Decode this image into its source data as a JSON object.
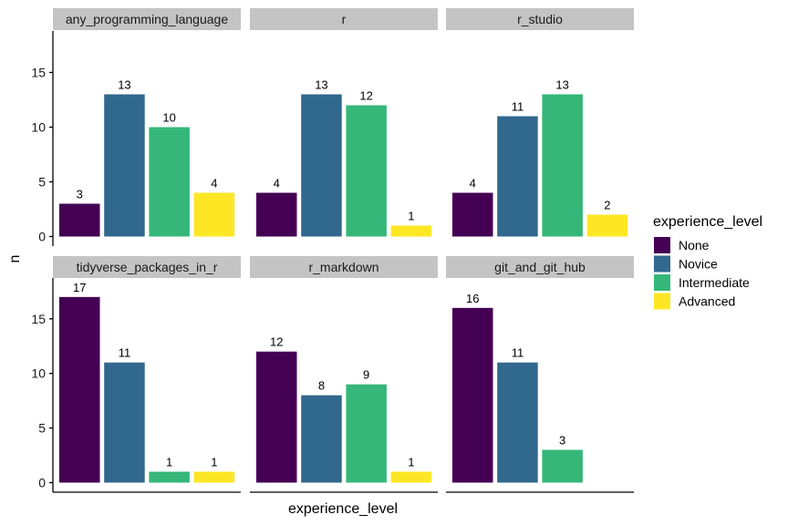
{
  "chart_data": {
    "type": "bar",
    "xlabel": "experience_level",
    "ylabel": "n",
    "ylim": [
      0,
      18
    ],
    "yticks": [
      0,
      5,
      10,
      15
    ],
    "grid": false,
    "legend_title": "experience_level",
    "legend_position": "right",
    "categories": [
      "None",
      "Novice",
      "Intermediate",
      "Advanced"
    ],
    "colors": {
      "None": "#440154",
      "Novice": "#31688E",
      "Intermediate": "#35B779",
      "Advanced": "#FDE725"
    },
    "facets": [
      {
        "title": "any_programming_language",
        "values": [
          3,
          13,
          10,
          4
        ]
      },
      {
        "title": "r",
        "values": [
          4,
          13,
          12,
          1
        ]
      },
      {
        "title": "r_studio",
        "values": [
          4,
          11,
          13,
          2
        ]
      },
      {
        "title": "tidyverse_packages_in_r",
        "values": [
          17,
          11,
          1,
          1
        ]
      },
      {
        "title": "r_markdown",
        "values": [
          12,
          8,
          9,
          1
        ]
      },
      {
        "title": "git_and_git_hub",
        "values": [
          16,
          11,
          3,
          null
        ]
      }
    ]
  }
}
